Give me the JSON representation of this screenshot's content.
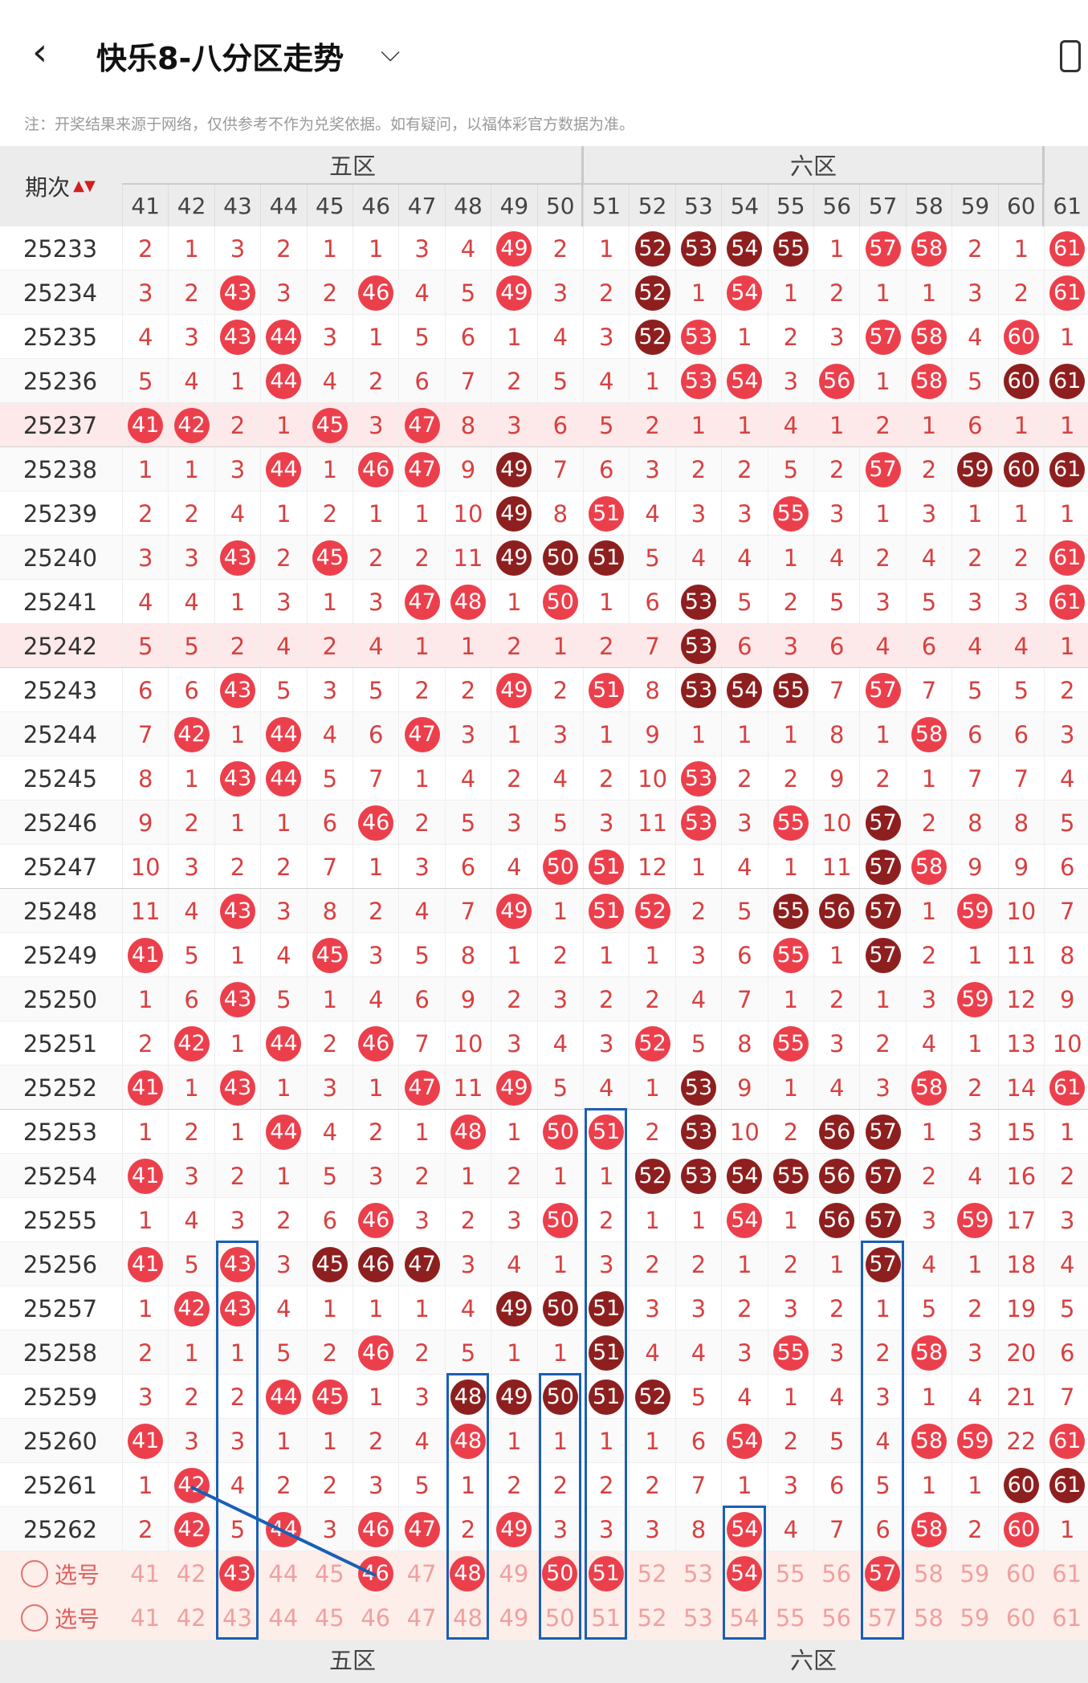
{
  "header": {
    "back_icon": "chevron-left-icon",
    "title": "快乐8-八分区走势",
    "dropdown_icon": "chevron-down-icon",
    "phone_icon": "phone-icon"
  },
  "notice": "注：开奖结果来源于网络，仅供参考不作为兑奖依据。如有疑问，以福体彩官方数据为准。",
  "table": {
    "period_header": "期次",
    "sort_icon": "sort-icon",
    "zones": [
      {
        "label": "五区",
        "start": 41,
        "end": 50
      },
      {
        "label": "六区",
        "start": 51,
        "end": 60
      }
    ],
    "columns": [
      "41",
      "42",
      "43",
      "44",
      "45",
      "46",
      "47",
      "48",
      "49",
      "50",
      "51",
      "52",
      "53",
      "54",
      "55",
      "56",
      "57",
      "58",
      "59",
      "60",
      "61"
    ],
    "colors": {
      "hit": "#ec3f4c",
      "consecutive": "#8e1f1f",
      "miss_text": "#d84040",
      "highlight_box": "#1a5fb4"
    },
    "rows": [
      {
        "period": "25233",
        "cells": [
          "2",
          "1",
          "3",
          "2",
          "1",
          "1",
          "3",
          "4",
          "49",
          "2",
          "1",
          "52",
          "53",
          "54",
          "55",
          "1",
          "57",
          "58",
          "2",
          "1",
          "61"
        ],
        "dark": [
          11,
          12,
          13,
          14
        ]
      },
      {
        "period": "25234",
        "cells": [
          "3",
          "2",
          "43",
          "3",
          "2",
          "46",
          "4",
          "5",
          "49",
          "3",
          "2",
          "52",
          "1",
          "54",
          "1",
          "2",
          "1",
          "1",
          "3",
          "2",
          "61"
        ],
        "dark": [
          11
        ]
      },
      {
        "period": "25235",
        "cells": [
          "4",
          "3",
          "43",
          "44",
          "3",
          "1",
          "5",
          "6",
          "1",
          "4",
          "3",
          "52",
          "53",
          "1",
          "2",
          "3",
          "57",
          "58",
          "4",
          "60",
          "1"
        ],
        "dark": [
          11
        ]
      },
      {
        "period": "25236",
        "cells": [
          "5",
          "4",
          "1",
          "44",
          "4",
          "2",
          "6",
          "7",
          "2",
          "5",
          "4",
          "1",
          "53",
          "54",
          "3",
          "56",
          "1",
          "58",
          "5",
          "60",
          "61"
        ],
        "dark": [
          19,
          20
        ]
      },
      {
        "period": "25237",
        "cells": [
          "41",
          "42",
          "2",
          "1",
          "45",
          "3",
          "47",
          "8",
          "3",
          "6",
          "5",
          "2",
          "1",
          "1",
          "4",
          "1",
          "2",
          "1",
          "6",
          "1",
          "1"
        ],
        "dark": []
      },
      {
        "period": "25238",
        "cells": [
          "1",
          "1",
          "3",
          "44",
          "1",
          "46",
          "47",
          "9",
          "49",
          "7",
          "6",
          "3",
          "2",
          "2",
          "5",
          "2",
          "57",
          "2",
          "59",
          "60",
          "61"
        ],
        "dark": [
          8,
          18,
          19,
          20
        ]
      },
      {
        "period": "25239",
        "cells": [
          "2",
          "2",
          "4",
          "1",
          "2",
          "1",
          "1",
          "10",
          "49",
          "8",
          "51",
          "4",
          "3",
          "3",
          "55",
          "3",
          "1",
          "3",
          "1",
          "1",
          "1"
        ],
        "dark": [
          8
        ]
      },
      {
        "period": "25240",
        "cells": [
          "3",
          "3",
          "43",
          "2",
          "45",
          "2",
          "2",
          "11",
          "49",
          "50",
          "51",
          "5",
          "4",
          "4",
          "1",
          "4",
          "2",
          "4",
          "2",
          "2",
          "61"
        ],
        "dark": [
          8,
          9,
          10
        ]
      },
      {
        "period": "25241",
        "cells": [
          "4",
          "4",
          "1",
          "3",
          "1",
          "3",
          "47",
          "48",
          "1",
          "50",
          "1",
          "6",
          "53",
          "5",
          "2",
          "5",
          "3",
          "5",
          "3",
          "3",
          "61"
        ],
        "dark": [
          12
        ]
      },
      {
        "period": "25242",
        "cells": [
          "5",
          "5",
          "2",
          "4",
          "2",
          "4",
          "1",
          "1",
          "2",
          "1",
          "2",
          "7",
          "53",
          "6",
          "3",
          "6",
          "4",
          "6",
          "4",
          "4",
          "1"
        ],
        "dark": [
          12
        ]
      },
      {
        "period": "25243",
        "cells": [
          "6",
          "6",
          "43",
          "5",
          "3",
          "5",
          "2",
          "2",
          "49",
          "2",
          "51",
          "8",
          "53",
          "54",
          "55",
          "7",
          "57",
          "7",
          "5",
          "5",
          "2"
        ],
        "dark": [
          12,
          13,
          14
        ]
      },
      {
        "period": "25244",
        "cells": [
          "7",
          "42",
          "1",
          "44",
          "4",
          "6",
          "47",
          "3",
          "1",
          "3",
          "1",
          "9",
          "1",
          "1",
          "1",
          "8",
          "1",
          "58",
          "6",
          "6",
          "3"
        ],
        "dark": []
      },
      {
        "period": "25245",
        "cells": [
          "8",
          "1",
          "43",
          "44",
          "5",
          "7",
          "1",
          "4",
          "2",
          "4",
          "2",
          "10",
          "53",
          "2",
          "2",
          "9",
          "2",
          "1",
          "7",
          "7",
          "4"
        ],
        "dark": []
      },
      {
        "period": "25246",
        "cells": [
          "9",
          "2",
          "1",
          "1",
          "6",
          "46",
          "2",
          "5",
          "3",
          "5",
          "3",
          "11",
          "53",
          "3",
          "55",
          "10",
          "57",
          "2",
          "8",
          "8",
          "5"
        ],
        "dark": [
          16
        ]
      },
      {
        "period": "25247",
        "cells": [
          "10",
          "3",
          "2",
          "2",
          "7",
          "1",
          "3",
          "6",
          "4",
          "50",
          "51",
          "12",
          "1",
          "4",
          "1",
          "11",
          "57",
          "58",
          "9",
          "9",
          "6"
        ],
        "dark": [
          16
        ]
      },
      {
        "period": "25248",
        "cells": [
          "11",
          "4",
          "43",
          "3",
          "8",
          "2",
          "4",
          "7",
          "49",
          "1",
          "51",
          "52",
          "2",
          "5",
          "55",
          "56",
          "57",
          "1",
          "59",
          "10",
          "7"
        ],
        "dark": [
          14,
          15,
          16
        ]
      },
      {
        "period": "25249",
        "cells": [
          "41",
          "5",
          "1",
          "4",
          "45",
          "3",
          "5",
          "8",
          "1",
          "2",
          "1",
          "1",
          "3",
          "6",
          "55",
          "1",
          "57",
          "2",
          "1",
          "11",
          "8"
        ],
        "dark": [
          16
        ]
      },
      {
        "period": "25250",
        "cells": [
          "1",
          "6",
          "43",
          "5",
          "1",
          "4",
          "6",
          "9",
          "2",
          "3",
          "2",
          "2",
          "4",
          "7",
          "1",
          "2",
          "1",
          "3",
          "59",
          "12",
          "9"
        ],
        "dark": []
      },
      {
        "period": "25251",
        "cells": [
          "2",
          "42",
          "1",
          "44",
          "2",
          "46",
          "7",
          "10",
          "3",
          "4",
          "3",
          "52",
          "5",
          "8",
          "55",
          "3",
          "2",
          "4",
          "1",
          "13",
          "10"
        ],
        "dark": []
      },
      {
        "period": "25252",
        "cells": [
          "41",
          "1",
          "43",
          "1",
          "3",
          "1",
          "47",
          "11",
          "49",
          "5",
          "4",
          "1",
          "53",
          "9",
          "1",
          "4",
          "3",
          "58",
          "2",
          "14",
          "61"
        ],
        "dark": [
          12
        ]
      },
      {
        "period": "25253",
        "cells": [
          "1",
          "2",
          "1",
          "44",
          "4",
          "2",
          "1",
          "48",
          "1",
          "50",
          "51",
          "2",
          "53",
          "10",
          "2",
          "56",
          "57",
          "1",
          "3",
          "15",
          "1"
        ],
        "dark": [
          12,
          15,
          16
        ]
      },
      {
        "period": "25254",
        "cells": [
          "41",
          "3",
          "2",
          "1",
          "5",
          "3",
          "2",
          "1",
          "2",
          "1",
          "1",
          "52",
          "53",
          "54",
          "55",
          "56",
          "57",
          "2",
          "4",
          "16",
          "2"
        ],
        "dark": [
          11,
          12,
          13,
          14,
          15,
          16
        ]
      },
      {
        "period": "25255",
        "cells": [
          "1",
          "4",
          "3",
          "2",
          "6",
          "46",
          "3",
          "2",
          "3",
          "50",
          "2",
          "1",
          "1",
          "54",
          "1",
          "56",
          "57",
          "3",
          "59",
          "17",
          "3"
        ],
        "dark": [
          15,
          16
        ]
      },
      {
        "period": "25256",
        "cells": [
          "41",
          "5",
          "43",
          "3",
          "45",
          "46",
          "47",
          "3",
          "4",
          "1",
          "3",
          "2",
          "2",
          "1",
          "2",
          "1",
          "57",
          "4",
          "1",
          "18",
          "4"
        ],
        "dark": [
          4,
          5,
          6,
          16
        ]
      },
      {
        "period": "25257",
        "cells": [
          "1",
          "42",
          "43",
          "4",
          "1",
          "1",
          "1",
          "4",
          "49",
          "50",
          "51",
          "3",
          "3",
          "2",
          "3",
          "2",
          "1",
          "5",
          "2",
          "19",
          "5"
        ],
        "dark": [
          8,
          9,
          10
        ]
      },
      {
        "period": "25258",
        "cells": [
          "2",
          "1",
          "1",
          "5",
          "2",
          "46",
          "2",
          "5",
          "1",
          "1",
          "51",
          "4",
          "4",
          "3",
          "55",
          "3",
          "2",
          "58",
          "3",
          "20",
          "6"
        ],
        "dark": [
          10
        ]
      },
      {
        "period": "25259",
        "cells": [
          "3",
          "2",
          "2",
          "44",
          "45",
          "1",
          "3",
          "48",
          "49",
          "50",
          "51",
          "52",
          "5",
          "4",
          "1",
          "4",
          "3",
          "1",
          "4",
          "21",
          "7"
        ],
        "dark": [
          7,
          8,
          9,
          10,
          11
        ]
      },
      {
        "period": "25260",
        "cells": [
          "41",
          "3",
          "3",
          "1",
          "1",
          "2",
          "4",
          "48",
          "1",
          "1",
          "1",
          "1",
          "6",
          "54",
          "2",
          "5",
          "4",
          "58",
          "59",
          "22",
          "61"
        ],
        "dark": []
      },
      {
        "period": "25261",
        "cells": [
          "1",
          "42",
          "4",
          "2",
          "2",
          "3",
          "5",
          "1",
          "2",
          "2",
          "2",
          "2",
          "7",
          "1",
          "3",
          "6",
          "5",
          "1",
          "1",
          "60",
          "61"
        ],
        "dark": [
          19,
          20
        ]
      },
      {
        "period": "25262",
        "cells": [
          "2",
          "42",
          "5",
          "44",
          "3",
          "46",
          "47",
          "2",
          "49",
          "3",
          "3",
          "3",
          "8",
          "54",
          "4",
          "7",
          "6",
          "58",
          "2",
          "60",
          "1"
        ],
        "dark": []
      }
    ],
    "select_rows": [
      {
        "label": "选号",
        "radio_icon": "radio-circle-icon",
        "selected": [
          "43",
          "46",
          "48",
          "50",
          "51",
          "54",
          "57"
        ]
      },
      {
        "label": "选号",
        "radio_icon": "radio-circle-icon",
        "selected": []
      }
    ]
  }
}
